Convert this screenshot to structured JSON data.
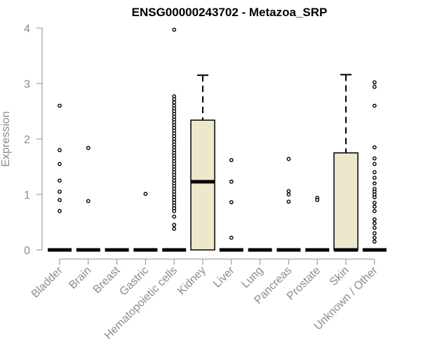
{
  "chart_data": {
    "type": "box",
    "title": "ENSG00000243702 - Metazoa_SRP",
    "xlabel": "",
    "ylabel": "Expression",
    "ylim": [
      0,
      4
    ],
    "yticks": [
      0,
      1,
      2,
      3,
      4
    ],
    "grid": false,
    "box_fill": "#ede7cc",
    "categories": [
      "Bladder",
      "Brain",
      "Breast",
      "Gastric",
      "Hematopoietic cells",
      "Kidney",
      "Liver",
      "Lung",
      "Pancreas",
      "Prostate",
      "Skin",
      "Unknown / Other"
    ],
    "boxes": [
      {
        "q1": 0,
        "median": 0,
        "q3": 0,
        "whisker_low": 0,
        "whisker_high": 0,
        "outliers": [
          2.6,
          1.8,
          1.55,
          1.25,
          1.05,
          0.9,
          0.7
        ]
      },
      {
        "q1": 0,
        "median": 0,
        "q3": 0,
        "whisker_low": 0,
        "whisker_high": 0,
        "outliers": [
          1.84,
          0.88
        ]
      },
      {
        "q1": 0,
        "median": 0,
        "q3": 0,
        "whisker_low": 0,
        "whisker_high": 0,
        "outliers": []
      },
      {
        "q1": 0,
        "median": 0,
        "q3": 0,
        "whisker_low": 0,
        "whisker_high": 0,
        "outliers": [
          1.01
        ]
      },
      {
        "q1": 0,
        "median": 0,
        "q3": 0,
        "whisker_low": 0,
        "whisker_high": 0,
        "outliers": [
          3.97,
          2.77,
          2.72,
          2.66,
          2.6,
          2.55,
          2.5,
          2.45,
          2.4,
          2.35,
          2.3,
          2.25,
          2.2,
          2.15,
          2.1,
          2.05,
          2.0,
          1.95,
          1.9,
          1.85,
          1.8,
          1.75,
          1.7,
          1.65,
          1.6,
          1.55,
          1.5,
          1.45,
          1.4,
          1.35,
          1.3,
          1.25,
          1.2,
          1.15,
          1.1,
          1.05,
          1.0,
          0.95,
          0.9,
          0.85,
          0.8,
          0.75,
          0.7,
          0.6,
          0.45,
          0.38
        ]
      },
      {
        "q1": 0,
        "median": 1.23,
        "q3": 2.34,
        "whisker_low": 0,
        "whisker_high": 3.15,
        "outliers": []
      },
      {
        "q1": 0,
        "median": 0,
        "q3": 0,
        "whisker_low": 0,
        "whisker_high": 0,
        "outliers": [
          1.62,
          1.23,
          0.86,
          0.22
        ]
      },
      {
        "q1": 0,
        "median": 0,
        "q3": 0,
        "whisker_low": 0,
        "whisker_high": 0,
        "outliers": []
      },
      {
        "q1": 0,
        "median": 0,
        "q3": 0,
        "whisker_low": 0,
        "whisker_high": 0,
        "outliers": [
          1.64,
          1.06,
          1.0,
          0.87
        ]
      },
      {
        "q1": 0,
        "median": 0,
        "q3": 0,
        "whisker_low": 0,
        "whisker_high": 0,
        "outliers": [
          0.94,
          0.9
        ]
      },
      {
        "q1": 0,
        "median": 0,
        "q3": 1.75,
        "whisker_low": 0,
        "whisker_high": 3.16,
        "outliers": []
      },
      {
        "q1": 0,
        "median": 0,
        "q3": 0,
        "whisker_low": 0,
        "whisker_high": 0,
        "outliers": [
          3.02,
          2.94,
          2.6,
          1.85,
          1.65,
          1.55,
          1.4,
          1.3,
          1.2,
          1.1,
          1.05,
          1.0,
          0.95,
          0.85,
          0.78,
          0.7,
          0.55,
          0.48,
          0.4,
          0.3,
          0.22,
          0.15
        ]
      }
    ]
  }
}
